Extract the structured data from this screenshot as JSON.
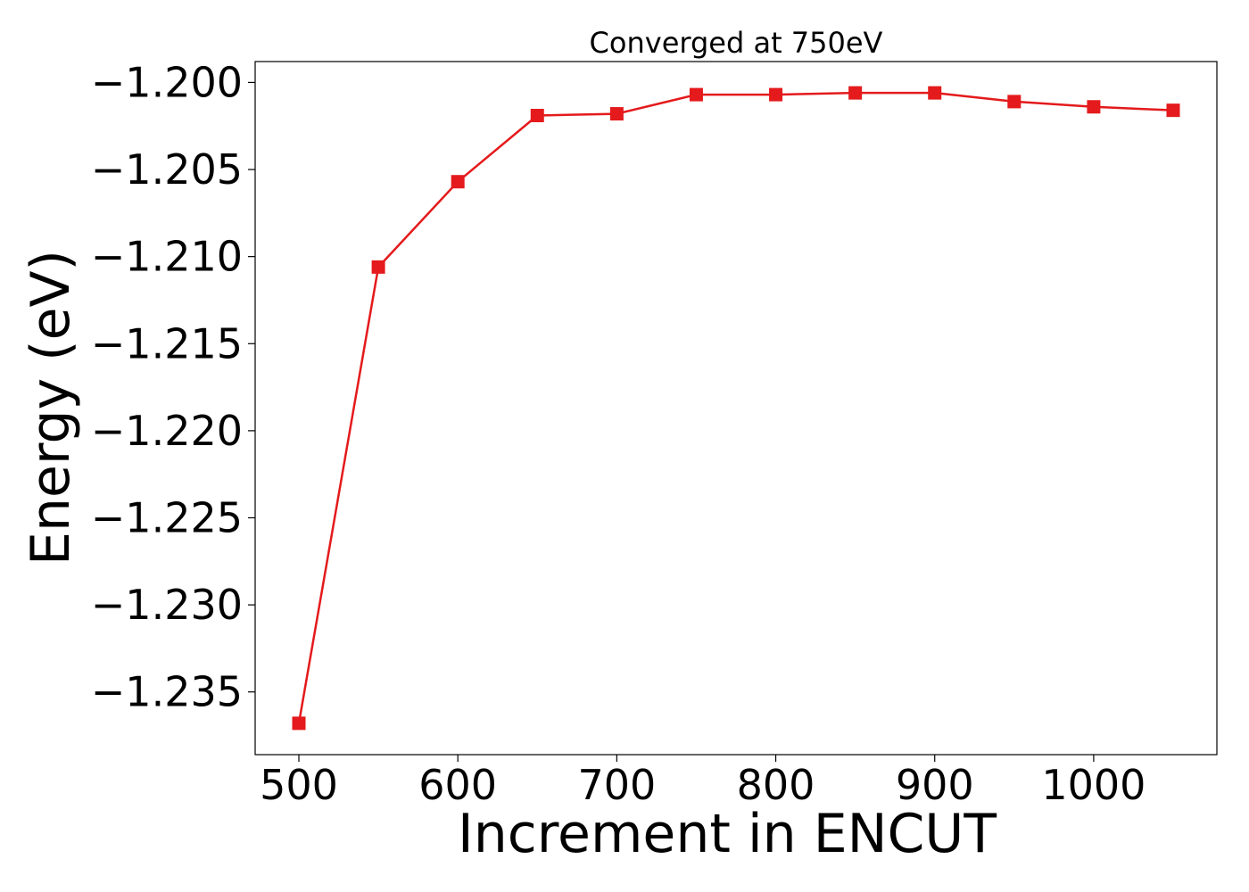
{
  "chart_data": {
    "type": "line",
    "title": "Converged at 750eV",
    "xlabel": "Increment in ENCUT",
    "ylabel": "Energy (eV)",
    "x": [
      500,
      550,
      600,
      650,
      700,
      750,
      800,
      850,
      900,
      950,
      1000,
      1050
    ],
    "series": [
      {
        "color": "#e41a1c",
        "marker": "square",
        "values": [
          -1.2368,
          -1.2106,
          -1.2057,
          -1.2019,
          -1.2018,
          -1.2007,
          -1.2007,
          -1.2006,
          -1.2006,
          -1.2011,
          -1.2014,
          -1.2016
        ]
      }
    ],
    "xlim": [
      472.5,
      1077.5
    ],
    "ylim": [
      -1.2386,
      -1.1988
    ],
    "xticks": [
      500,
      600,
      700,
      800,
      900,
      1000
    ],
    "xtick_labels": [
      "500",
      "600",
      "700",
      "800",
      "900",
      "1000"
    ],
    "yticks": [
      -1.2,
      -1.205,
      -1.21,
      -1.215,
      -1.22,
      -1.225,
      -1.23,
      -1.235
    ],
    "ytick_labels": [
      "−1.200",
      "−1.205",
      "−1.210",
      "−1.215",
      "−1.220",
      "−1.225",
      "−1.230",
      "−1.235"
    ],
    "grid": false,
    "legend": "none"
  }
}
